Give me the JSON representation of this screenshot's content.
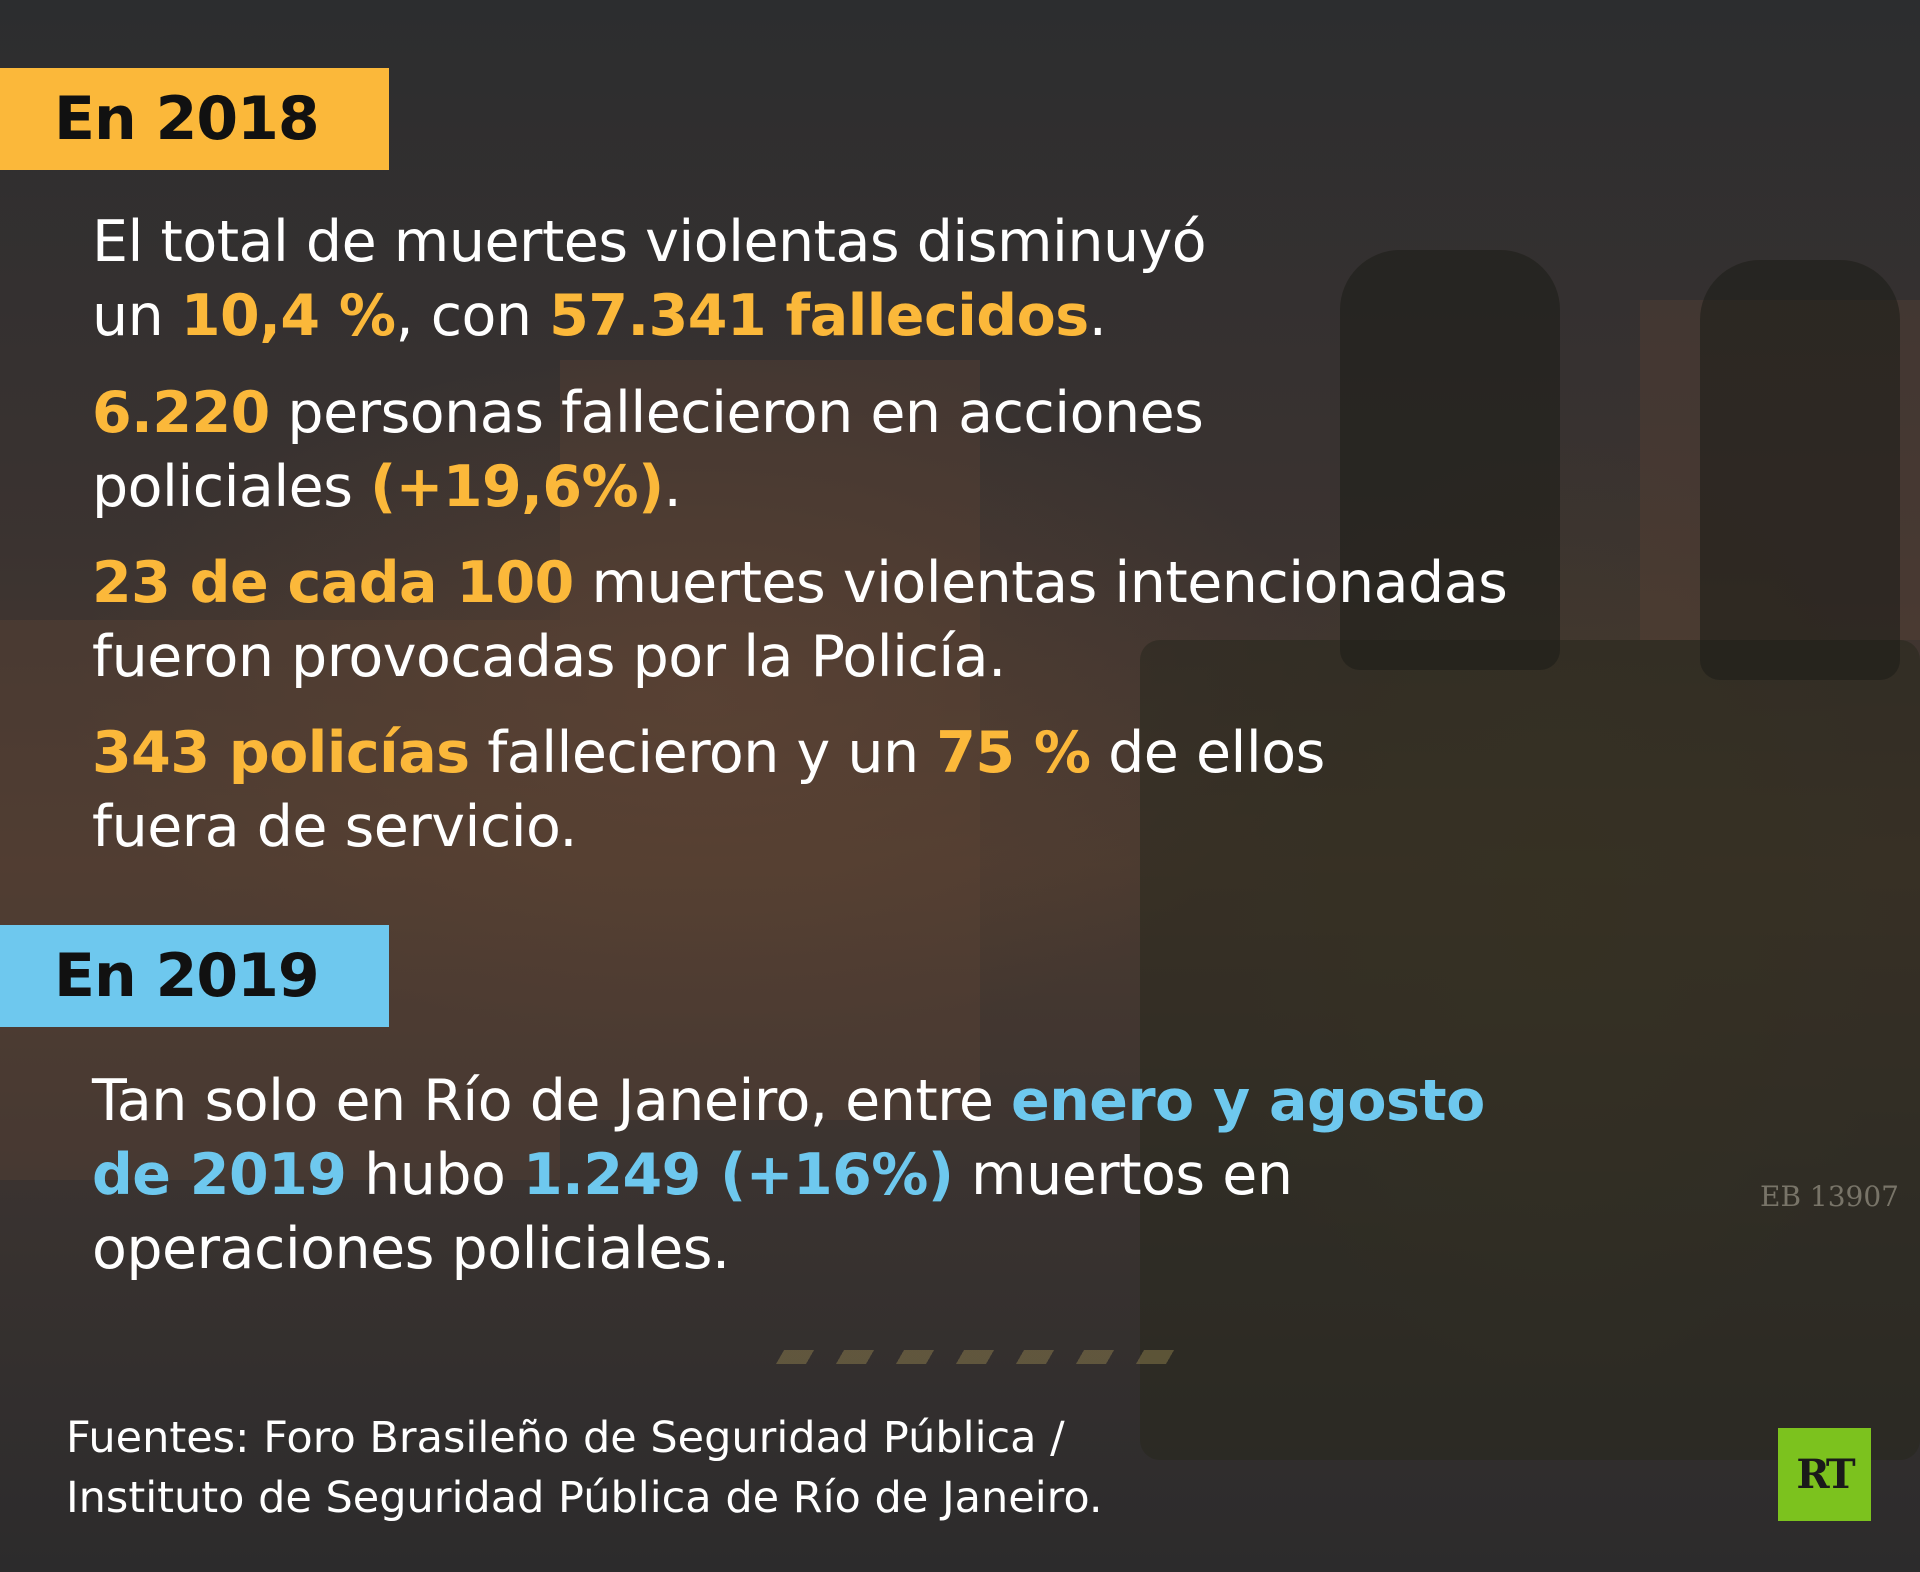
{
  "section_2018": {
    "label": "En 2018",
    "p1": {
      "a": "El total de muertes violentas disminuyó",
      "b": "un ",
      "c": "10,4 %",
      "d": ", con ",
      "e": "57.341 fallecidos",
      "f": "."
    },
    "p2": {
      "a": "6.220",
      "b": " personas fallecieron en acciones",
      "c": "policiales ",
      "d": "(+19,6%)",
      "e": "."
    },
    "p3": {
      "a": "23 de cada 100",
      "b": " muertes violentas intencionadas",
      "c": "fueron provocadas por la Policía."
    },
    "p4": {
      "a": "343 policías",
      "b": " fallecieron y un ",
      "c": "75 %",
      "d": " de ellos",
      "e": "fuera de servicio."
    }
  },
  "section_2019": {
    "label": "En 2019",
    "p5": {
      "a": "Tan solo en Río de Janeiro, entre ",
      "b": "enero y agosto",
      "c": "de 2019",
      "d": " hubo ",
      "e": "1.249 (+16%)",
      "f": " muertos en",
      "g": "operaciones policiales."
    }
  },
  "source": {
    "line1": "Fuentes: Foro Brasileño de Seguridad Pública /",
    "line2": "Instituto de Seguridad Pública de Río de Janeiro."
  },
  "logo": {
    "text": "RT",
    "color": "#7cc21e"
  },
  "colors": {
    "accent_2018": "#fbb83a",
    "accent_2019": "#6ec8ee"
  }
}
